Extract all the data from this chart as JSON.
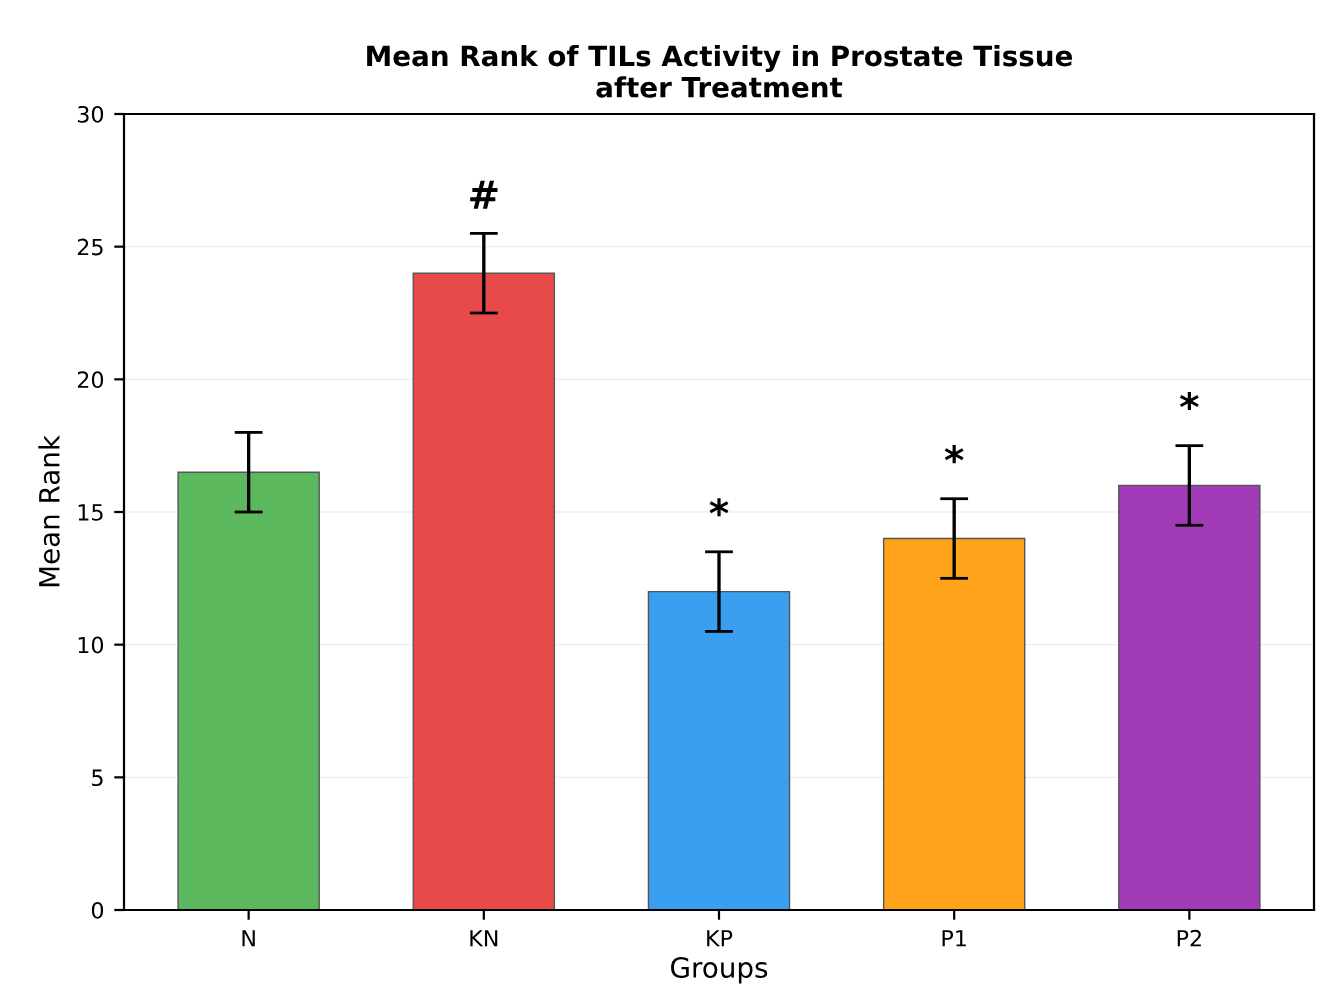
{
  "chart_data": {
    "type": "bar",
    "title": "Mean Rank of TILs Activity in Prostate Tissue\nafter Treatment",
    "xlabel": "Groups",
    "ylabel": "Mean Rank",
    "categories": [
      "N",
      "KN",
      "KP",
      "P1",
      "P2"
    ],
    "values": [
      16.5,
      24,
      12,
      14,
      16
    ],
    "colors": [
      "#5cb85c",
      "#e84a4a",
      "#3a9ff0",
      "#ffa31a",
      "#a23bb8"
    ],
    "errors": [
      1.5,
      1.5,
      1.5,
      1.5,
      1.5
    ],
    "ylim": [
      0,
      30
    ],
    "yticks": [
      0,
      5,
      10,
      15,
      20,
      25,
      30
    ],
    "grid": "y",
    "annotations": [
      "#",
      "*",
      "*",
      "*"
    ]
  }
}
